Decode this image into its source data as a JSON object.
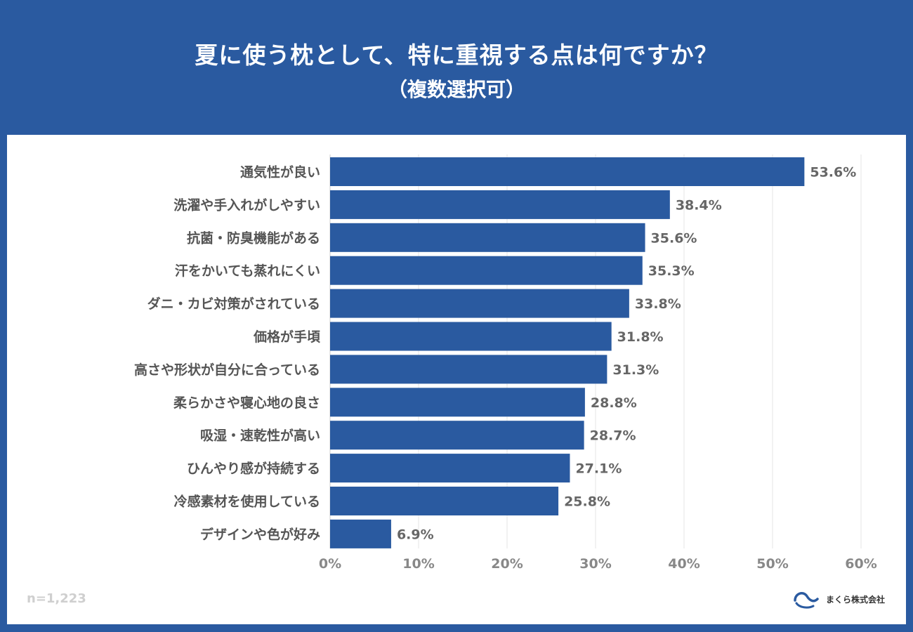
{
  "header": {
    "title": "夏に使う枕として、特に重視する点は何ですか？",
    "subtitle": "（複数選択可）"
  },
  "sample_size": "n=1,223",
  "logo": {
    "icon": "wave-logo-icon",
    "text": "まくら株式会社"
  },
  "colors": {
    "bar": "#2a5aa0",
    "header_bg": "#2a5aa0",
    "grid": "#e6e6e6"
  },
  "chart_data": {
    "type": "bar",
    "orientation": "horizontal",
    "categories": [
      "通気性が良い",
      "洗濯や手入れがしやすい",
      "抗菌・防臭機能がある",
      "汗をかいても蒸れにくい",
      "ダニ・カビ対策がされている",
      "価格が手頃",
      "高さや形状が自分に合っている",
      "柔らかさや寝心地の良さ",
      "吸湿・速乾性が高い",
      "ひんやり感が持続する",
      "冷感素材を使用している",
      "デザインや色が好み"
    ],
    "values": [
      53.6,
      38.4,
      35.6,
      35.3,
      33.8,
      31.8,
      31.3,
      28.8,
      28.7,
      27.1,
      25.8,
      6.9
    ],
    "value_labels": [
      "53.6%",
      "38.4%",
      "35.6%",
      "35.3%",
      "33.8%",
      "31.8%",
      "31.3%",
      "28.8%",
      "28.7%",
      "27.1%",
      "25.8%",
      "6.9%"
    ],
    "xlim": [
      0,
      60
    ],
    "xticks": [
      "0%",
      "10%",
      "20%",
      "30%",
      "40%",
      "50%",
      "60%"
    ],
    "grid": true
  }
}
